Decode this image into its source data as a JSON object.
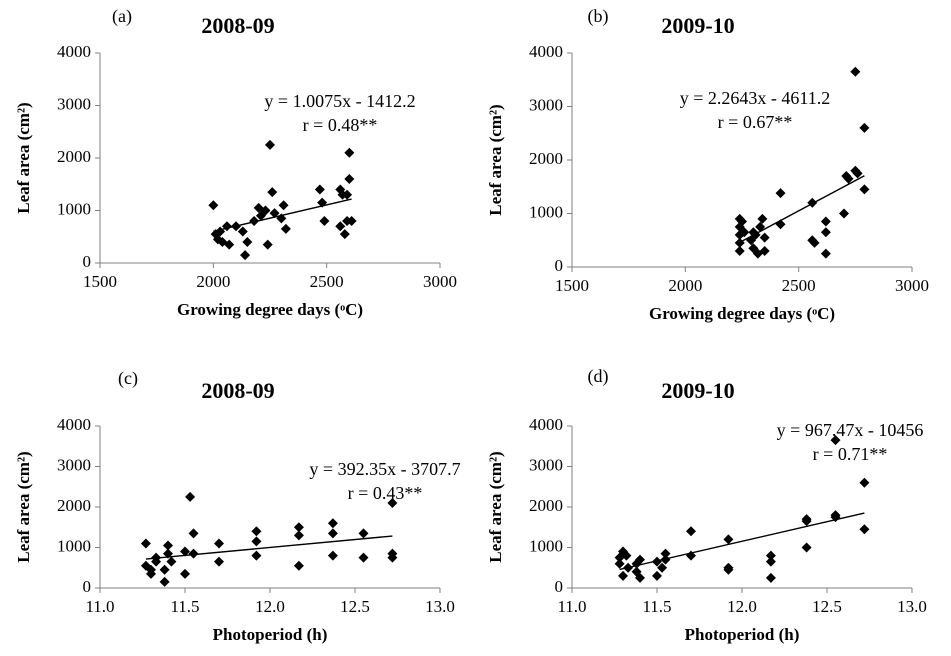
{
  "chart_data": [
    {
      "type": "scatter",
      "panel": "(a)",
      "title": "2008-09",
      "xlabel": "Growing degree days (ᵒC)",
      "ylabel": "Leaf  area (cm²)",
      "equation": "y = 1.0075x - 1412.2",
      "r_label": "r = 0.48**",
      "trend_slope": 1.0075,
      "trend_intercept": -1412.2,
      "color": "#000000",
      "xlim": [
        1500,
        3000
      ],
      "ylim": [
        0,
        4000
      ],
      "xticks": [
        1500,
        2000,
        2500,
        3000
      ],
      "yticks": [
        0,
        1000,
        2000,
        3000,
        4000
      ],
      "x": [
        2000,
        2010,
        2020,
        2030,
        2040,
        2060,
        2070,
        2100,
        2130,
        2140,
        2150,
        2180,
        2200,
        2210,
        2230,
        2240,
        2250,
        2260,
        2270,
        2300,
        2310,
        2320,
        2470,
        2480,
        2490,
        2560,
        2570,
        2580,
        2590,
        2600,
        2600,
        2610,
        2590,
        2560
      ],
      "values": [
        1100,
        550,
        450,
        600,
        400,
        700,
        350,
        700,
        600,
        150,
        400,
        800,
        1050,
        900,
        1000,
        350,
        2250,
        1350,
        950,
        850,
        1100,
        650,
        1400,
        1150,
        800,
        1400,
        1300,
        550,
        800,
        1600,
        2100,
        800,
        1300,
        700
      ]
    },
    {
      "type": "scatter",
      "panel": "(b)",
      "title": "2009-10",
      "xlabel": "Growing degree days (ᵒC)",
      "ylabel": "Leaf  area (cm²)",
      "equation": "y = 2.2643x - 4611.2",
      "r_label": "r = 0.67**",
      "trend_slope": 2.2643,
      "trend_intercept": -4611.2,
      "color": "#000000",
      "xlim": [
        1500,
        3000
      ],
      "ylim": [
        0,
        4000
      ],
      "xticks": [
        1500,
        2000,
        2500,
        3000
      ],
      "yticks": [
        0,
        1000,
        2000,
        3000,
        4000
      ],
      "x": [
        2240,
        2240,
        2240,
        2240,
        2240,
        2250,
        2260,
        2290,
        2300,
        2300,
        2310,
        2320,
        2330,
        2340,
        2350,
        2350,
        2420,
        2420,
        2560,
        2560,
        2570,
        2620,
        2620,
        2620,
        2700,
        2710,
        2720,
        2750,
        2760,
        2750,
        2790,
        2790
      ],
      "values": [
        900,
        750,
        600,
        450,
        300,
        850,
        650,
        500,
        350,
        650,
        600,
        250,
        750,
        900,
        550,
        300,
        1380,
        800,
        1200,
        500,
        450,
        650,
        850,
        250,
        1000,
        1700,
        1650,
        1800,
        1750,
        3650,
        2600,
        1450
      ]
    },
    {
      "type": "scatter",
      "panel": "(c)",
      "title": "2008-09",
      "xlabel": "Photoperiod (h)",
      "ylabel": "Leaf  area (cm²)",
      "equation": "y = 392.35x - 3707.7",
      "r_label": "r =  0.43**",
      "trend_slope": 392.35,
      "trend_intercept": -3707.7,
      "color": "#000000",
      "xlim": [
        11,
        13
      ],
      "ylim": [
        0,
        4000
      ],
      "xticks": [
        {
          "value": 11,
          "label": "11.0"
        },
        {
          "value": 11.5,
          "label": "11.5"
        },
        {
          "value": 12,
          "label": "12.0"
        },
        {
          "value": 12.5,
          "label": "12.5"
        },
        {
          "value": 13,
          "label": "13.0"
        }
      ],
      "yticks": [
        0,
        1000,
        2000,
        3000,
        4000
      ],
      "x": [
        11.27,
        11.27,
        11.3,
        11.3,
        11.33,
        11.33,
        11.38,
        11.38,
        11.4,
        11.4,
        11.42,
        11.5,
        11.5,
        11.53,
        11.55,
        11.55,
        11.7,
        11.7,
        11.92,
        11.92,
        11.92,
        12.17,
        12.17,
        12.17,
        12.37,
        12.37,
        12.37,
        12.55,
        12.55,
        12.72,
        12.72,
        12.72
      ],
      "values": [
        1100,
        550,
        450,
        350,
        650,
        750,
        150,
        450,
        850,
        1050,
        650,
        350,
        900,
        2250,
        1350,
        850,
        1100,
        650,
        1400,
        1150,
        800,
        1500,
        1300,
        550,
        1600,
        1350,
        800,
        1350,
        750,
        2100,
        850,
        750
      ]
    },
    {
      "type": "scatter",
      "panel": "(d)",
      "title": "2009-10",
      "xlabel": "Photoperiod (h)",
      "ylabel": "Leaf  area (cm²)",
      "equation": "y = 967.47x - 10456",
      "r_label": "r = 0.71**",
      "trend_slope": 967.47,
      "trend_intercept": -10456,
      "color": "#000000",
      "xlim": [
        11,
        13
      ],
      "ylim": [
        0,
        4000
      ],
      "xticks": [
        {
          "value": 11,
          "label": "11.0"
        },
        {
          "value": 11.5,
          "label": "11.5"
        },
        {
          "value": 12,
          "label": "12.0"
        },
        {
          "value": 12.5,
          "label": "12.5"
        },
        {
          "value": 13,
          "label": "13.0"
        }
      ],
      "yticks": [
        0,
        1000,
        2000,
        3000,
        4000
      ],
      "x": [
        11.28,
        11.28,
        11.3,
        11.3,
        11.32,
        11.33,
        11.38,
        11.38,
        11.4,
        11.4,
        11.5,
        11.5,
        11.53,
        11.55,
        11.55,
        11.7,
        11.7,
        11.92,
        11.92,
        11.92,
        12.17,
        12.17,
        12.17,
        12.38,
        12.38,
        12.38,
        12.55,
        12.55,
        12.55,
        12.72,
        12.72
      ],
      "values": [
        750,
        600,
        900,
        300,
        800,
        500,
        400,
        600,
        250,
        700,
        300,
        650,
        500,
        850,
        700,
        1400,
        800,
        1200,
        500,
        450,
        800,
        650,
        250,
        1700,
        1650,
        1000,
        1800,
        1750,
        3650,
        2600,
        1450
      ]
    }
  ]
}
